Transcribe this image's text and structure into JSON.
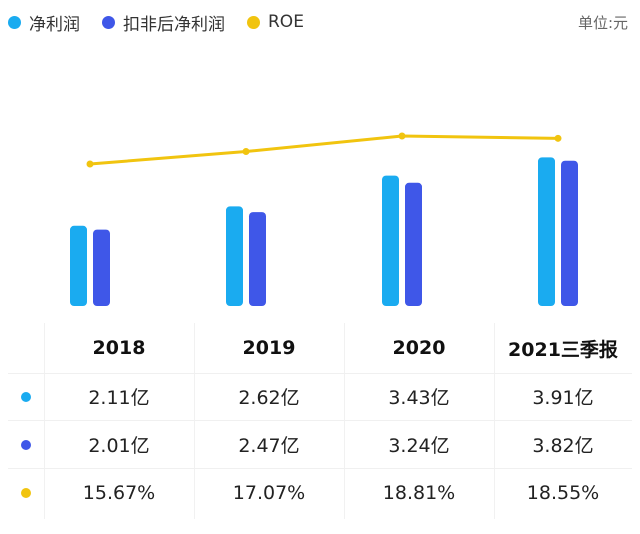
{
  "legend": {
    "net_profit_label": "净利润",
    "deducted_profit_label": "扣非后净利润",
    "roe_label": "ROE",
    "unit_label": "单位:元"
  },
  "colors": {
    "net_profit": "#1AABF0",
    "deducted_profit": "#3F57E8",
    "roe": "#F1C40F"
  },
  "chart_data": {
    "type": "bar",
    "categories": [
      "2018",
      "2019",
      "2020",
      "2021三季报"
    ],
    "series": [
      {
        "name": "净利润",
        "type": "bar",
        "values": [
          2.11,
          2.62,
          3.43,
          3.91
        ]
      },
      {
        "name": "扣非后净利润",
        "type": "bar",
        "values": [
          2.01,
          2.47,
          3.24,
          3.82
        ]
      },
      {
        "name": "ROE",
        "type": "line",
        "values": [
          15.67,
          17.07,
          18.81,
          18.55
        ]
      }
    ],
    "value_labels": {
      "net_profit": [
        "2.11亿",
        "2.62亿",
        "3.43亿",
        "3.91亿"
      ],
      "deducted_profit": [
        "2.01亿",
        "2.47亿",
        "3.24亿",
        "3.82亿"
      ],
      "roe": [
        "15.67%",
        "17.07%",
        "18.81%",
        "18.55%"
      ]
    }
  },
  "table": {
    "headers": [
      "2018",
      "2019",
      "2020",
      "2021三季报"
    ],
    "rows": {
      "net_profit": [
        "2.11亿",
        "2.62亿",
        "3.43亿",
        "3.91亿"
      ],
      "deducted_profit": [
        "2.01亿",
        "2.47亿",
        "3.24亿",
        "3.82亿"
      ],
      "roe": [
        "15.67%",
        "17.07%",
        "18.81%",
        "18.55%"
      ]
    }
  }
}
